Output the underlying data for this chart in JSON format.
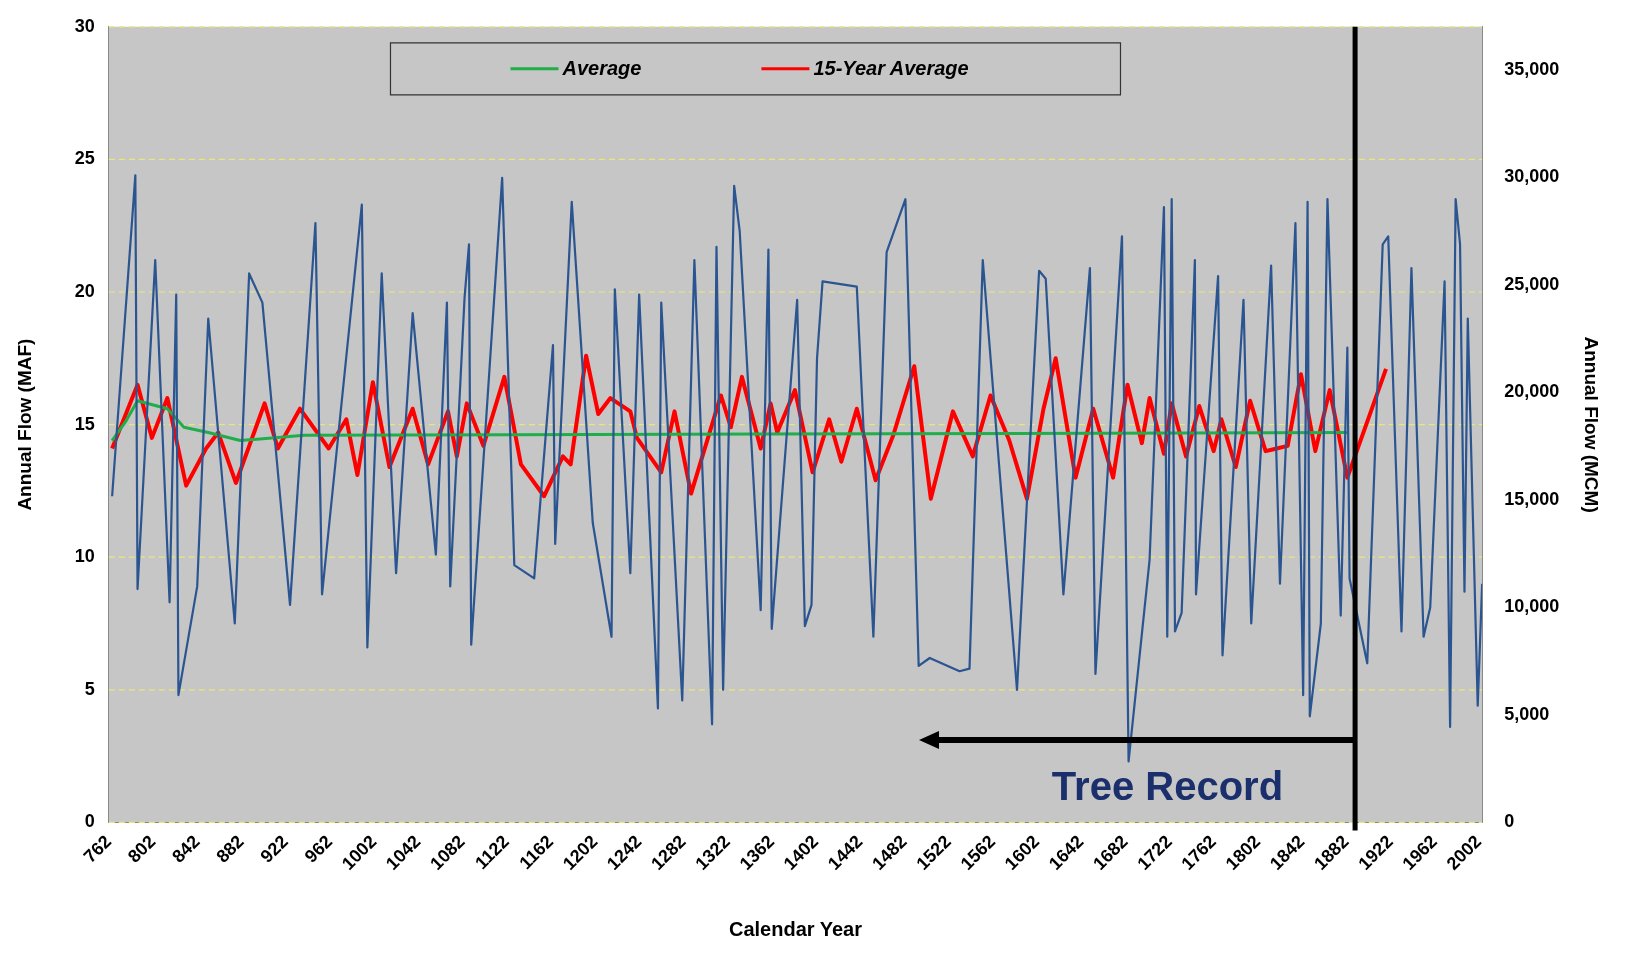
{
  "chart_data": {
    "type": "line",
    "xlabel": "Calendar Year",
    "ylabel": "Annual Flow (MAF)",
    "y2label": "Annual Flow (MCM)",
    "xlim": [
      762,
      2005
    ],
    "xticks": [
      762,
      802,
      842,
      882,
      922,
      962,
      1002,
      1042,
      1082,
      1122,
      1162,
      1202,
      1242,
      1282,
      1322,
      1362,
      1402,
      1442,
      1482,
      1522,
      1562,
      1602,
      1642,
      1682,
      1722,
      1762,
      1802,
      1842,
      1882,
      1922,
      1962,
      2002
    ],
    "ylim": [
      0,
      30
    ],
    "yticks": [
      0,
      5,
      10,
      15,
      20,
      25,
      30
    ],
    "y2lim": [
      0,
      37000
    ],
    "y2ticks": [
      0,
      {
        "value": 5000,
        "label": "5,000"
      },
      {
        "value": 10000,
        "label": "10,000"
      },
      {
        "value": 15000,
        "label": "15,000"
      },
      {
        "value": 20000,
        "label": "20,000"
      },
      {
        "value": 25000,
        "label": "25,000"
      },
      {
        "value": 30000,
        "label": "30,000"
      },
      {
        "value": 35000,
        "label": "35,000"
      }
    ],
    "grid": "y",
    "legend": "top",
    "marker": "none",
    "line_style": "solid",
    "series": [
      {
        "color": "#2b5590",
        "x": [
          765,
          786,
          788,
          804,
          817,
          823,
          825,
          842,
          852,
          876,
          889,
          901,
          926,
          949,
          955,
          991,
          996,
          1009,
          1022,
          1037,
          1058,
          1068,
          1071,
          1084,
          1088,
          1090,
          1118,
          1129,
          1147,
          1164,
          1166,
          1181,
          1200,
          1217,
          1220,
          1234,
          1242,
          1259,
          1262,
          1281,
          1292,
          1308,
          1312,
          1318,
          1328,
          1333,
          1352,
          1359,
          1362,
          1385,
          1392,
          1398,
          1403,
          1408,
          1439,
          1454,
          1466,
          1483,
          1495,
          1505,
          1532,
          1541,
          1553,
          1584,
          1604,
          1610,
          1626,
          1650,
          1655,
          1679,
          1685,
          1704,
          1717,
          1720,
          1724,
          1727,
          1733,
          1745,
          1746,
          1766,
          1770,
          1789,
          1796,
          1814,
          1822,
          1836,
          1843,
          1847,
          1849,
          1859,
          1865,
          1877,
          1883,
          1885,
          1901,
          1915,
          1920,
          1932,
          1941,
          1952,
          1958,
          1971,
          1976,
          1981,
          1985,
          1989,
          1992,
          2001,
          2005
        ],
        "values": [
          12.3,
          24.4,
          8.8,
          21.2,
          8.3,
          19.9,
          4.8,
          8.9,
          19.0,
          7.5,
          20.7,
          19.6,
          8.2,
          22.6,
          8.6,
          23.3,
          6.6,
          20.7,
          9.4,
          19.2,
          10.1,
          19.6,
          8.9,
          19.8,
          21.8,
          6.7,
          24.3,
          9.7,
          9.2,
          18.0,
          10.5,
          23.4,
          11.3,
          7.0,
          20.1,
          9.4,
          19.9,
          4.3,
          19.6,
          4.6,
          21.2,
          3.7,
          21.7,
          5.0,
          24.0,
          22.3,
          8.0,
          21.6,
          7.3,
          19.7,
          7.4,
          8.2,
          17.5,
          20.4,
          20.2,
          7.0,
          21.5,
          23.5,
          5.9,
          6.2,
          5.7,
          5.8,
          21.2,
          5.0,
          20.8,
          20.5,
          8.6,
          20.9,
          5.6,
          22.1,
          2.3,
          9.9,
          23.2,
          7.0,
          23.5,
          7.2,
          7.9,
          21.2,
          8.6,
          20.6,
          6.3,
          19.7,
          7.5,
          21.0,
          9.0,
          22.6,
          4.8,
          23.4,
          4.0,
          7.5,
          23.5,
          7.8,
          17.9,
          9.2,
          6.0,
          21.8,
          22.1,
          7.2,
          20.9,
          7.0,
          8.1,
          20.4,
          3.6,
          23.5,
          21.8,
          8.7,
          19.0,
          4.4,
          9.0
        ]
      },
      {
        "name": "Average",
        "color": "#1fae4a",
        "x": [
          765,
          777,
          788,
          815,
          830,
          852,
          881,
          939,
          1883
        ],
        "values": [
          14.4,
          15.1,
          15.9,
          15.6,
          14.9,
          14.7,
          14.4,
          14.6,
          14.7
        ]
      },
      {
        "name": "15-Year Average",
        "color": "#ff0000",
        "x": [
          765,
          788,
          801,
          815,
          832,
          850,
          861,
          877,
          903,
          915,
          935,
          961,
          977,
          987,
          1001,
          1016,
          1037,
          1051,
          1069,
          1077,
          1086,
          1101,
          1120,
          1135,
          1156,
          1173,
          1180,
          1194,
          1205,
          1216,
          1234,
          1240,
          1262,
          1274,
          1289,
          1316,
          1325,
          1335,
          1352,
          1361,
          1367,
          1383,
          1399,
          1414,
          1425,
          1439,
          1456,
          1472,
          1491,
          1506,
          1526,
          1544,
          1560,
          1577,
          1593,
          1608,
          1619,
          1637,
          1653,
          1671,
          1684,
          1697,
          1704,
          1717,
          1724,
          1737,
          1749,
          1762,
          1769,
          1782,
          1795,
          1809,
          1829,
          1841,
          1854,
          1867,
          1883,
          1918
        ],
        "values": [
          14.1,
          16.5,
          14.5,
          16.0,
          12.7,
          14.1,
          14.7,
          12.8,
          15.8,
          14.1,
          15.6,
          14.1,
          15.2,
          13.1,
          16.6,
          13.4,
          15.6,
          13.5,
          15.5,
          13.8,
          15.8,
          14.2,
          16.8,
          13.5,
          12.3,
          13.8,
          13.5,
          17.6,
          15.4,
          16.0,
          15.5,
          14.5,
          13.2,
          15.5,
          12.4,
          16.1,
          14.9,
          16.8,
          14.1,
          15.8,
          14.7,
          16.3,
          13.2,
          15.2,
          13.6,
          15.6,
          12.9,
          14.6,
          17.2,
          12.2,
          15.5,
          13.8,
          16.1,
          14.4,
          12.2,
          15.6,
          17.5,
          13.0,
          15.6,
          13.0,
          16.5,
          14.3,
          16.0,
          13.9,
          15.8,
          13.8,
          15.7,
          14.0,
          15.2,
          13.4,
          15.9,
          14.0,
          14.2,
          16.9,
          14.0,
          16.3,
          13.0,
          17.1
        ]
      }
    ],
    "ref_lines": [
      {
        "axis": "x",
        "value": 1890,
        "color": "#000000"
      }
    ],
    "annotations": [
      "Tree Record"
    ]
  }
}
